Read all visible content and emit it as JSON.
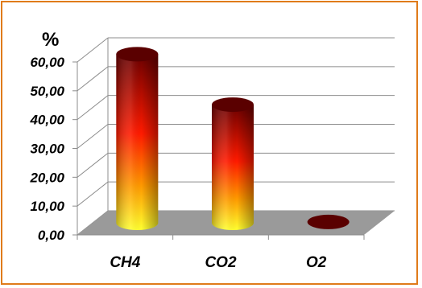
{
  "chart_data": {
    "type": "bar",
    "style": "3d-cylinder",
    "ylabel": "%",
    "categories": [
      "CH4",
      "CO2",
      "O2"
    ],
    "values": [
      58.5,
      41.0,
      0.3
    ],
    "ylim": [
      0,
      60
    ],
    "yticks": [
      "0,00",
      "10,00",
      "20,00",
      "30,00",
      "40,00",
      "50,00",
      "60,00"
    ],
    "grid": true,
    "legend": "none",
    "colors": {
      "bar_top": "#5a0000",
      "bar_dark": "#8b0000",
      "bar_mid": "#ff1a00",
      "bar_low": "#ff9a00",
      "bar_bottom": "#ffff20",
      "floor": "#9a9a9a",
      "frame": "#e07b1a"
    }
  }
}
